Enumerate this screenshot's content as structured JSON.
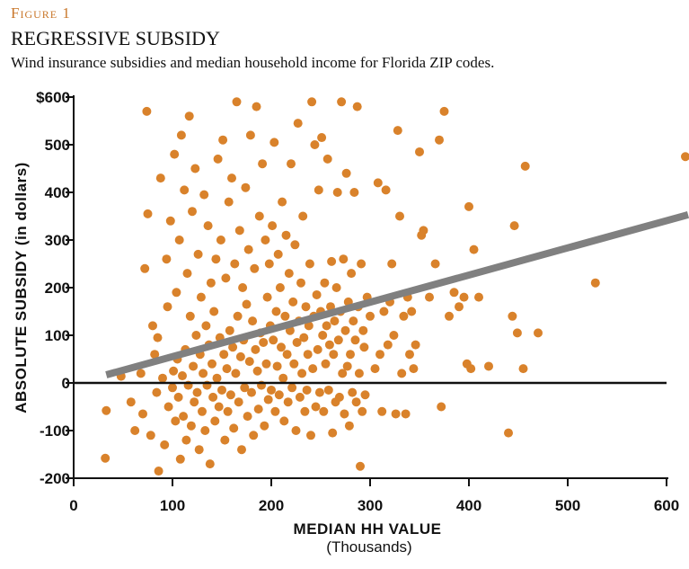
{
  "header": {
    "figure_label": "Figure 1",
    "title": "REGRESSIVE SUBSIDY",
    "subtitle": "Wind insurance subsidies and median household income for Florida ZIP codes."
  },
  "chart_data": {
    "type": "scatter",
    "title": "REGRESSIVE SUBSIDY",
    "xlabel": "MEDIAN HH VALUE",
    "xlabel_sub": "(Thousands)",
    "ylabel": "ABSOLUTE SUBSIDY (in dollars)",
    "xlim": [
      0,
      600
    ],
    "ylim": [
      -200,
      600
    ],
    "x_ticks": [
      0,
      100,
      200,
      300,
      400,
      500,
      600
    ],
    "x_tick_labels": [
      "0",
      "100",
      "200",
      "300",
      "400",
      "500",
      "600"
    ],
    "y_ticks": [
      600,
      500,
      400,
      300,
      200,
      100,
      0,
      -100,
      -200
    ],
    "y_tick_labels": [
      "$600",
      "500",
      "400",
      "300",
      "200",
      "100",
      "0",
      "-100",
      "-200"
    ],
    "colors": {
      "points": "#d9822b",
      "trend": "#808080",
      "zero_line": "#111111",
      "axis": "#111111"
    },
    "trend_line": {
      "x": [
        33,
        625
      ],
      "y": [
        17,
        353
      ]
    },
    "series": [
      {
        "name": "Florida ZIP codes",
        "points": [
          [
            33,
            -58
          ],
          [
            32,
            -158
          ],
          [
            48,
            14
          ],
          [
            58,
            -40
          ],
          [
            62,
            -100
          ],
          [
            68,
            20
          ],
          [
            70,
            -65
          ],
          [
            72,
            240
          ],
          [
            74,
            570
          ],
          [
            75,
            355
          ],
          [
            78,
            -110
          ],
          [
            80,
            120
          ],
          [
            82,
            60
          ],
          [
            84,
            -20
          ],
          [
            85,
            95
          ],
          [
            86,
            -185
          ],
          [
            88,
            430
          ],
          [
            90,
            10
          ],
          [
            92,
            -130
          ],
          [
            94,
            260
          ],
          [
            95,
            160
          ],
          [
            96,
            -50
          ],
          [
            98,
            340
          ],
          [
            100,
            -10
          ],
          [
            101,
            25
          ],
          [
            102,
            480
          ],
          [
            103,
            -80
          ],
          [
            104,
            190
          ],
          [
            105,
            50
          ],
          [
            106,
            -30
          ],
          [
            107,
            300
          ],
          [
            108,
            -160
          ],
          [
            109,
            520
          ],
          [
            110,
            15
          ],
          [
            111,
            -70
          ],
          [
            112,
            405
          ],
          [
            113,
            70
          ],
          [
            114,
            -120
          ],
          [
            115,
            230
          ],
          [
            116,
            -5
          ],
          [
            117,
            560
          ],
          [
            118,
            140
          ],
          [
            119,
            -90
          ],
          [
            120,
            360
          ],
          [
            121,
            35
          ],
          [
            122,
            -40
          ],
          [
            123,
            450
          ],
          [
            124,
            100
          ],
          [
            125,
            -20
          ],
          [
            126,
            270
          ],
          [
            127,
            -140
          ],
          [
            128,
            60
          ],
          [
            129,
            180
          ],
          [
            130,
            -60
          ],
          [
            131,
            20
          ],
          [
            132,
            395
          ],
          [
            133,
            -100
          ],
          [
            134,
            120
          ],
          [
            135,
            -5
          ],
          [
            136,
            330
          ],
          [
            137,
            80
          ],
          [
            138,
            -170
          ],
          [
            139,
            210
          ],
          [
            140,
            40
          ],
          [
            141,
            -30
          ],
          [
            142,
            150
          ],
          [
            143,
            -80
          ],
          [
            144,
            260
          ],
          [
            145,
            10
          ],
          [
            146,
            470
          ],
          [
            147,
            -50
          ],
          [
            148,
            95
          ],
          [
            149,
            300
          ],
          [
            150,
            -15
          ],
          [
            151,
            510
          ],
          [
            152,
            60
          ],
          [
            153,
            -120
          ],
          [
            154,
            220
          ],
          [
            155,
            30
          ],
          [
            156,
            -60
          ],
          [
            157,
            380
          ],
          [
            158,
            110
          ],
          [
            159,
            -25
          ],
          [
            160,
            430
          ],
          [
            161,
            75
          ],
          [
            162,
            -95
          ],
          [
            163,
            250
          ],
          [
            164,
            20
          ],
          [
            165,
            590
          ],
          [
            166,
            140
          ],
          [
            167,
            -40
          ],
          [
            168,
            320
          ],
          [
            169,
            55
          ],
          [
            170,
            -140
          ],
          [
            171,
            200
          ],
          [
            172,
            90
          ],
          [
            173,
            -10
          ],
          [
            174,
            410
          ],
          [
            175,
            165
          ],
          [
            176,
            -70
          ],
          [
            177,
            280
          ],
          [
            178,
            45
          ],
          [
            179,
            520
          ],
          [
            180,
            -20
          ],
          [
            181,
            130
          ],
          [
            182,
            -110
          ],
          [
            183,
            240
          ],
          [
            184,
            70
          ],
          [
            185,
            580
          ],
          [
            186,
            25
          ],
          [
            187,
            -55
          ],
          [
            188,
            350
          ],
          [
            189,
            105
          ],
          [
            190,
            -5
          ],
          [
            191,
            460
          ],
          [
            192,
            85
          ],
          [
            193,
            -90
          ],
          [
            194,
            300
          ],
          [
            195,
            40
          ],
          [
            196,
            180
          ],
          [
            197,
            -35
          ],
          [
            198,
            250
          ],
          [
            199,
            120
          ],
          [
            200,
            -15
          ],
          [
            201,
            330
          ],
          [
            202,
            90
          ],
          [
            203,
            505
          ],
          [
            204,
            -60
          ],
          [
            205,
            150
          ],
          [
            206,
            35
          ],
          [
            207,
            270
          ],
          [
            208,
            -25
          ],
          [
            209,
            200
          ],
          [
            210,
            75
          ],
          [
            211,
            380
          ],
          [
            212,
            10
          ],
          [
            213,
            -80
          ],
          [
            214,
            140
          ],
          [
            215,
            310
          ],
          [
            216,
            60
          ],
          [
            217,
            -40
          ],
          [
            218,
            230
          ],
          [
            219,
            110
          ],
          [
            220,
            460
          ],
          [
            221,
            -10
          ],
          [
            222,
            170
          ],
          [
            223,
            40
          ],
          [
            224,
            290
          ],
          [
            225,
            -100
          ],
          [
            226,
            85
          ],
          [
            227,
            545
          ],
          [
            228,
            130
          ],
          [
            229,
            -30
          ],
          [
            230,
            210
          ],
          [
            231,
            20
          ],
          [
            232,
            350
          ],
          [
            233,
            95
          ],
          [
            234,
            -60
          ],
          [
            235,
            160
          ],
          [
            236,
            -15
          ],
          [
            237,
            60
          ],
          [
            238,
            120
          ],
          [
            239,
            250
          ],
          [
            240,
            -110
          ],
          [
            241,
            590
          ],
          [
            242,
            30
          ],
          [
            243,
            140
          ],
          [
            244,
            500
          ],
          [
            245,
            -50
          ],
          [
            246,
            185
          ],
          [
            247,
            70
          ],
          [
            248,
            405
          ],
          [
            249,
            -20
          ],
          [
            250,
            150
          ],
          [
            251,
            515
          ],
          [
            252,
            100
          ],
          [
            253,
            -60
          ],
          [
            254,
            210
          ],
          [
            255,
            40
          ],
          [
            256,
            120
          ],
          [
            257,
            470
          ],
          [
            258,
            -15
          ],
          [
            259,
            80
          ],
          [
            260,
            160
          ],
          [
            261,
            255
          ],
          [
            262,
            -105
          ],
          [
            263,
            60
          ],
          [
            264,
            130
          ],
          [
            265,
            -40
          ],
          [
            266,
            200
          ],
          [
            267,
            400
          ],
          [
            268,
            90
          ],
          [
            269,
            -30
          ],
          [
            270,
            150
          ],
          [
            271,
            590
          ],
          [
            272,
            20
          ],
          [
            273,
            260
          ],
          [
            274,
            -65
          ],
          [
            275,
            110
          ],
          [
            276,
            440
          ],
          [
            277,
            35
          ],
          [
            278,
            170
          ],
          [
            279,
            -90
          ],
          [
            280,
            60
          ],
          [
            281,
            230
          ],
          [
            282,
            -20
          ],
          [
            283,
            130
          ],
          [
            284,
            400
          ],
          [
            285,
            90
          ],
          [
            286,
            -40
          ],
          [
            287,
            580
          ],
          [
            288,
            160
          ],
          [
            289,
            20
          ],
          [
            290,
            -175
          ],
          [
            291,
            250
          ],
          [
            292,
            -60
          ],
          [
            293,
            110
          ],
          [
            294,
            75
          ],
          [
            295,
            -25
          ],
          [
            297,
            180
          ],
          [
            300,
            140
          ],
          [
            305,
            30
          ],
          [
            308,
            420
          ],
          [
            310,
            60
          ],
          [
            312,
            -60
          ],
          [
            314,
            150
          ],
          [
            316,
            405
          ],
          [
            318,
            80
          ],
          [
            320,
            170
          ],
          [
            322,
            250
          ],
          [
            324,
            100
          ],
          [
            326,
            -65
          ],
          [
            328,
            530
          ],
          [
            330,
            350
          ],
          [
            332,
            20
          ],
          [
            334,
            140
          ],
          [
            336,
            -65
          ],
          [
            338,
            180
          ],
          [
            340,
            60
          ],
          [
            342,
            150
          ],
          [
            344,
            30
          ],
          [
            346,
            80
          ],
          [
            350,
            485
          ],
          [
            352,
            310
          ],
          [
            354,
            320
          ],
          [
            360,
            180
          ],
          [
            366,
            250
          ],
          [
            370,
            510
          ],
          [
            372,
            -50
          ],
          [
            375,
            570
          ],
          [
            380,
            140
          ],
          [
            385,
            190
          ],
          [
            390,
            160
          ],
          [
            395,
            180
          ],
          [
            398,
            40
          ],
          [
            400,
            370
          ],
          [
            402,
            30
          ],
          [
            405,
            280
          ],
          [
            410,
            180
          ],
          [
            420,
            35
          ],
          [
            440,
            -105
          ],
          [
            444,
            140
          ],
          [
            446,
            330
          ],
          [
            449,
            105
          ],
          [
            455,
            30
          ],
          [
            457,
            455
          ],
          [
            470,
            105
          ],
          [
            528,
            210
          ],
          [
            623,
            475
          ]
        ]
      }
    ]
  }
}
